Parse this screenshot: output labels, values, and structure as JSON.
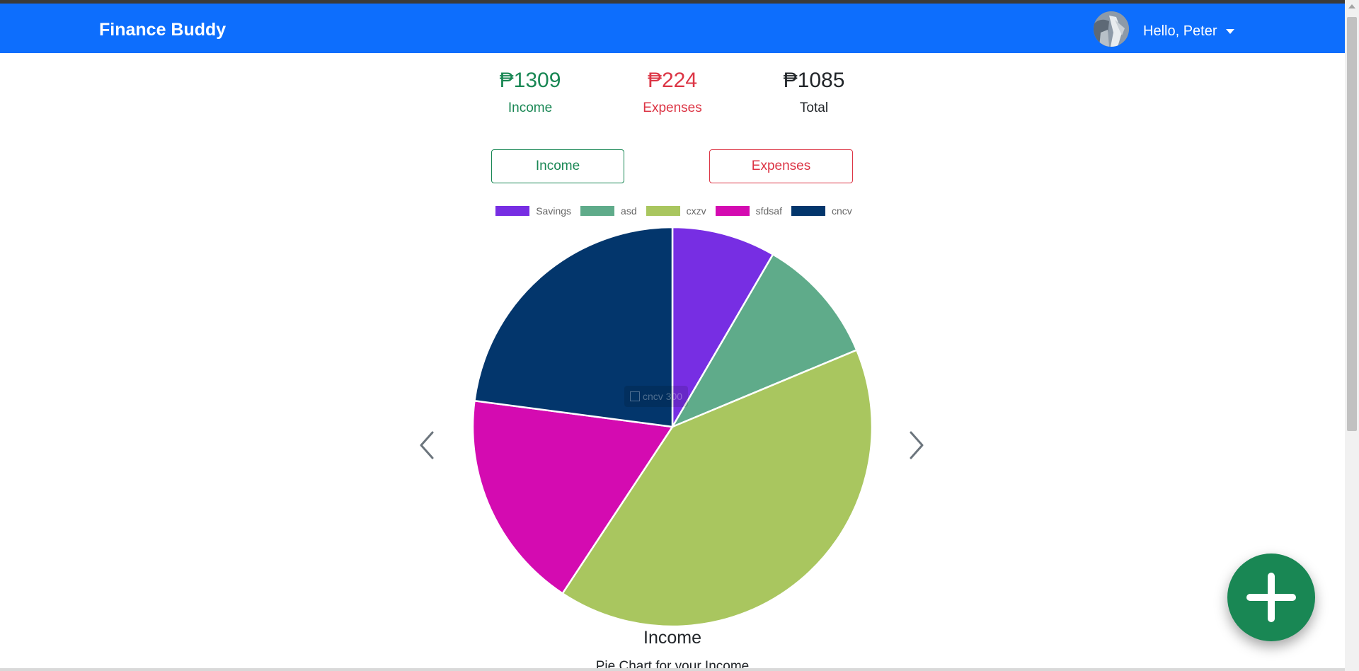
{
  "app": {
    "brand": "Finance Buddy",
    "brand_color": "#0d6efd"
  },
  "user": {
    "greeting": "Hello, Peter"
  },
  "summary": {
    "income": {
      "amount": "₱1309",
      "label": "Income",
      "color": "#198754"
    },
    "expenses": {
      "amount": "₱224",
      "label": "Expenses",
      "color": "#dc3545"
    },
    "total": {
      "amount": "₱1085",
      "label": "Total",
      "color": "#212529"
    }
  },
  "toggles": {
    "income_label": "Income",
    "expenses_label": "Expenses"
  },
  "chart_data": {
    "type": "pie",
    "title": "Income",
    "subtitle": "Pie Chart for your Income",
    "legend_position": "top",
    "categories": [
      "Savings",
      "asd",
      "cxzv",
      "sfdsaf",
      "cncv"
    ],
    "values": [
      110,
      135,
      531,
      233,
      300
    ],
    "colors": [
      "#772ee3",
      "#5fab8a",
      "#a9c65f",
      "#d40bb1",
      "#03366c"
    ],
    "tooltip": {
      "label": "cncv",
      "value": "300"
    }
  },
  "icons": {
    "prev": "chevron-left-icon",
    "next": "chevron-right-icon",
    "fab": "plus-icon"
  },
  "fab": {
    "color": "#198754"
  }
}
